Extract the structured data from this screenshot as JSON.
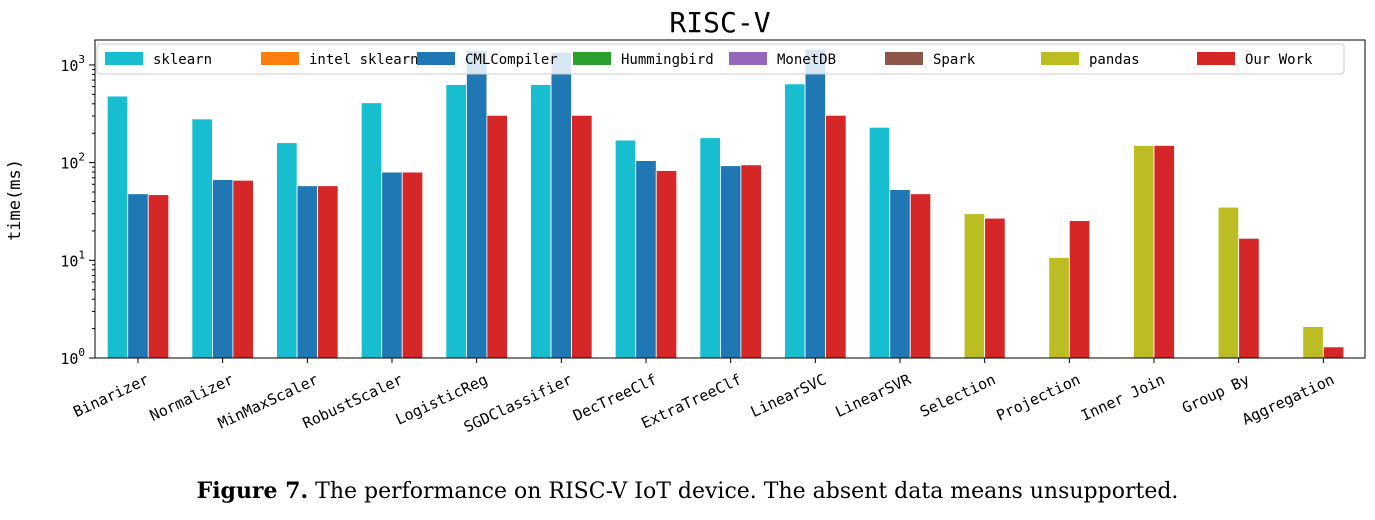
{
  "chart_data": {
    "type": "bar",
    "title": "RISC-V",
    "ylabel": "time(ms)",
    "xlabel": "",
    "yscale": "log",
    "ylim": [
      1,
      1800
    ],
    "y_ticks": [
      {
        "value": 1,
        "base": "10",
        "exp": "0"
      },
      {
        "value": 10,
        "base": "10",
        "exp": "1"
      },
      {
        "value": 100,
        "base": "10",
        "exp": "2"
      },
      {
        "value": 1000,
        "base": "10",
        "exp": "3"
      }
    ],
    "legend_position": "top",
    "categories": [
      "Binarizer",
      "Normalizer",
      "MinMaxScaler",
      "RobustScaler",
      "LogisticReg",
      "SGDClassifier",
      "DecTreeClf",
      "ExtraTreeClf",
      "LinearSVC",
      "LinearSVR",
      "Selection",
      "Projection",
      "Inner Join",
      "Group By",
      "Aggregation"
    ],
    "series": [
      {
        "name": "sklearn",
        "color": "#17becf",
        "values": [
          480,
          280,
          160,
          410,
          630,
          630,
          170,
          180,
          640,
          230,
          null,
          null,
          null,
          null,
          null
        ]
      },
      {
        "name": "intel sklearn",
        "color": "#ff7f0e",
        "values": [
          null,
          null,
          null,
          null,
          null,
          null,
          null,
          null,
          null,
          null,
          null,
          null,
          null,
          null,
          null
        ]
      },
      {
        "name": "CMLCompiler",
        "color": "#1f77b4",
        "values": [
          48,
          67,
          58,
          80,
          1400,
          1350,
          105,
          93,
          1450,
          53,
          null,
          null,
          null,
          null,
          null
        ]
      },
      {
        "name": "Hummingbird",
        "color": "#2ca02c",
        "values": [
          null,
          null,
          null,
          null,
          null,
          null,
          null,
          null,
          null,
          null,
          null,
          null,
          null,
          null,
          null
        ]
      },
      {
        "name": "MonetDB",
        "color": "#9467bd",
        "values": [
          null,
          null,
          null,
          null,
          null,
          null,
          null,
          null,
          null,
          null,
          null,
          null,
          null,
          null,
          null
        ]
      },
      {
        "name": "Spark",
        "color": "#8c564b",
        "values": [
          null,
          null,
          null,
          null,
          null,
          null,
          null,
          null,
          null,
          null,
          null,
          null,
          null,
          null,
          null
        ]
      },
      {
        "name": "pandas",
        "color": "#bcbd22",
        "values": [
          null,
          null,
          null,
          null,
          null,
          null,
          null,
          null,
          null,
          null,
          30,
          10.7,
          150,
          35,
          2.1
        ]
      },
      {
        "name": "Our Work",
        "color": "#d62728",
        "values": [
          47,
          66,
          58,
          80,
          305,
          305,
          83,
          95,
          305,
          48,
          27,
          25.5,
          150,
          16.8,
          1.3
        ]
      }
    ]
  },
  "caption": {
    "label": "Figure 7.",
    "text": " The performance on RISC-V IoT device. The absent data means unsupported."
  }
}
